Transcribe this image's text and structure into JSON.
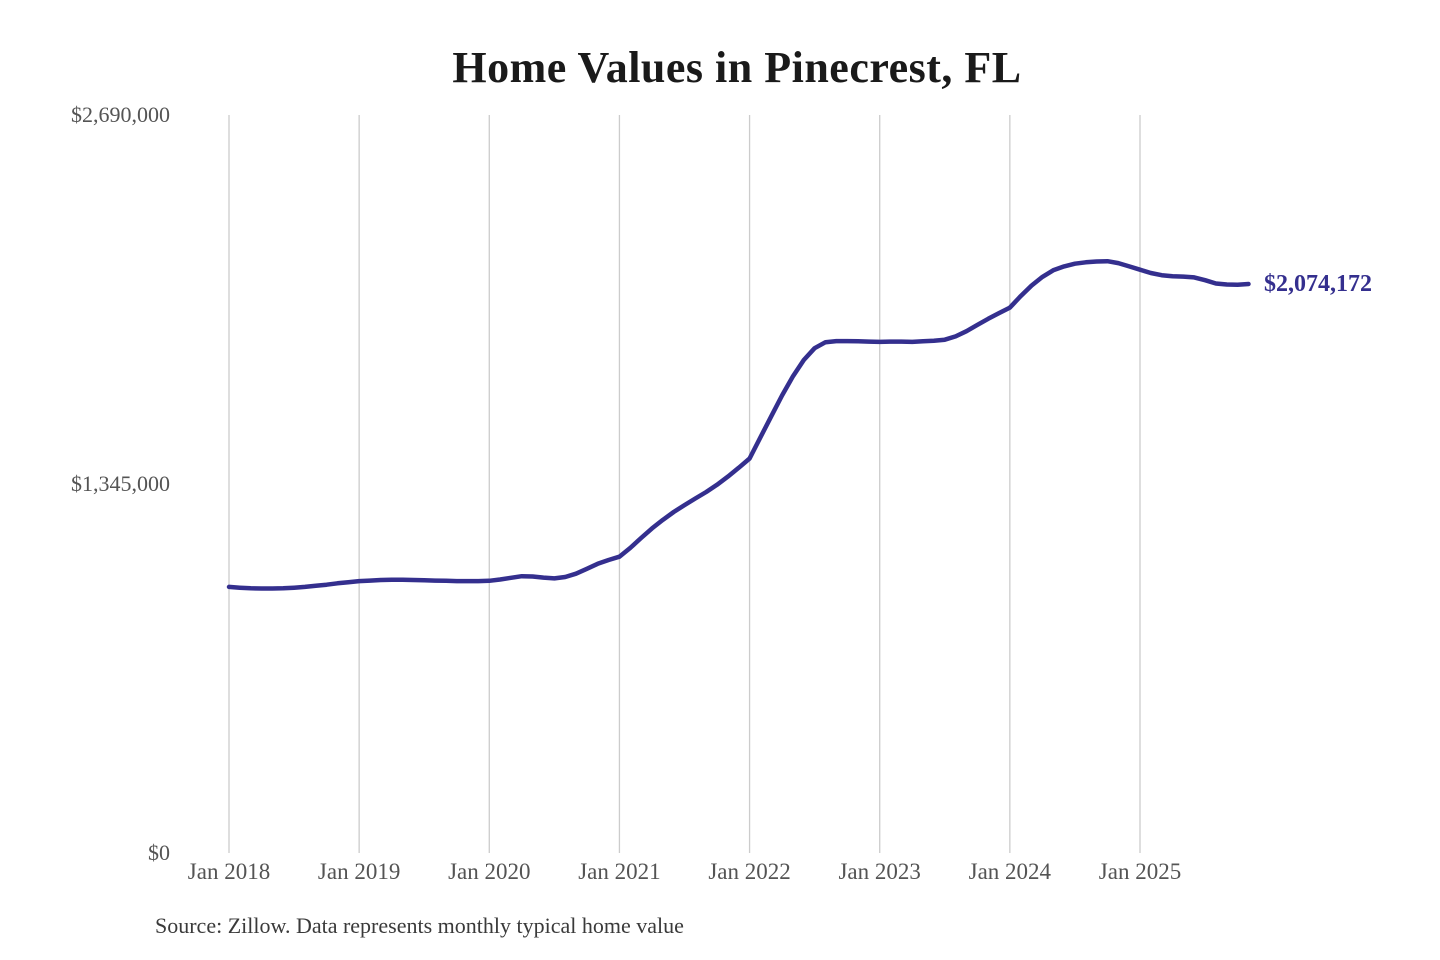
{
  "source_note": "Source: Zillow. Data represents monthly typical home value",
  "colors": {
    "background": "#FFFFFF",
    "line": "#342F8E",
    "grid": "#CCCCCC",
    "title": "#1A1A1A",
    "tick": "#545454",
    "source": "#3A3A3A"
  },
  "chart_data": {
    "type": "line",
    "title": "Home Values in Pinecrest, FL",
    "xlabel": "",
    "ylabel": "",
    "grid": "vertical-only",
    "legend": "none",
    "ylim": [
      0,
      2690000
    ],
    "y_ticks": [
      0,
      1345000,
      2690000
    ],
    "y_tick_labels": [
      "$0",
      "$1,345,000",
      "$2,690,000"
    ],
    "x_tick_labels": [
      "Jan 2018",
      "Jan 2019",
      "Jan 2020",
      "Jan 2021",
      "Jan 2022",
      "Jan 2023",
      "Jan 2024",
      "Jan 2025"
    ],
    "x_range": [
      "Jan 2018",
      "Nov 2025"
    ],
    "end_label": "$2,074,172",
    "end_value": 2074172,
    "series": [
      {
        "name": "Typical home value",
        "start": "2018-01",
        "interval": "monthly",
        "values": [
          970000,
          967000,
          965000,
          964000,
          964000,
          965000,
          967000,
          970000,
          974000,
          978000,
          983000,
          987000,
          991000,
          993000,
          995000,
          996000,
          996000,
          995000,
          994000,
          993000,
          992000,
          991000,
          991000,
          991000,
          992000,
          997000,
          1003000,
          1009000,
          1008000,
          1004000,
          1001000,
          1006000,
          1018000,
          1036000,
          1054000,
          1068000,
          1080000,
          1112000,
          1148000,
          1183000,
          1214000,
          1243000,
          1268000,
          1292000,
          1316000,
          1342000,
          1372000,
          1404000,
          1438000,
          1515000,
          1592000,
          1668000,
          1738000,
          1797000,
          1840000,
          1862000,
          1866000,
          1866000,
          1865000,
          1864000,
          1863000,
          1864000,
          1864000,
          1863000,
          1865000,
          1867000,
          1871000,
          1883000,
          1902000,
          1925000,
          1947000,
          1968000,
          1988000,
          2030000,
          2068000,
          2100000,
          2124000,
          2138000,
          2148000,
          2153000,
          2156000,
          2157000,
          2150000,
          2138000,
          2126000,
          2114000,
          2106000,
          2102000,
          2101000,
          2098000,
          2088000,
          2076000,
          2072000,
          2071000,
          2074172
        ]
      }
    ]
  }
}
